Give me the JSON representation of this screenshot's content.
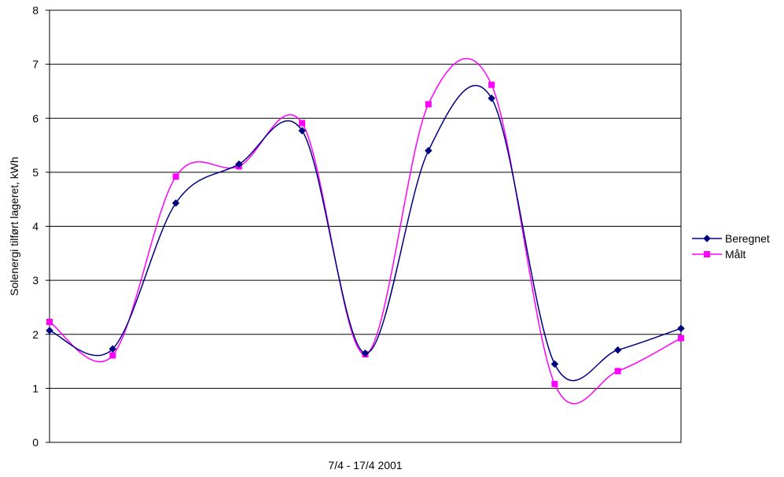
{
  "chart_data": {
    "type": "line",
    "smooth": true,
    "title": "",
    "xlabel": "7/4 - 17/4 2001",
    "ylabel": "Solenergi tilført lageret, kWh",
    "ylim": [
      0,
      8
    ],
    "yticks": [
      0,
      1,
      2,
      3,
      4,
      5,
      6,
      7,
      8
    ],
    "x": [
      1,
      2,
      3,
      4,
      5,
      6,
      7,
      8,
      9,
      10,
      11
    ],
    "grid": "horizontal",
    "legend_position": "right",
    "series": [
      {
        "name": "Beregnet",
        "color": "#000080",
        "marker": "diamond",
        "values": [
          2.07,
          1.73,
          4.43,
          5.15,
          5.77,
          1.65,
          5.4,
          6.37,
          1.45,
          1.71,
          2.11
        ]
      },
      {
        "name": "Målt",
        "color": "#FF00FF",
        "marker": "square",
        "values": [
          2.23,
          1.61,
          4.92,
          5.11,
          5.91,
          1.63,
          6.26,
          6.62,
          1.08,
          1.32,
          1.93
        ]
      }
    ]
  }
}
